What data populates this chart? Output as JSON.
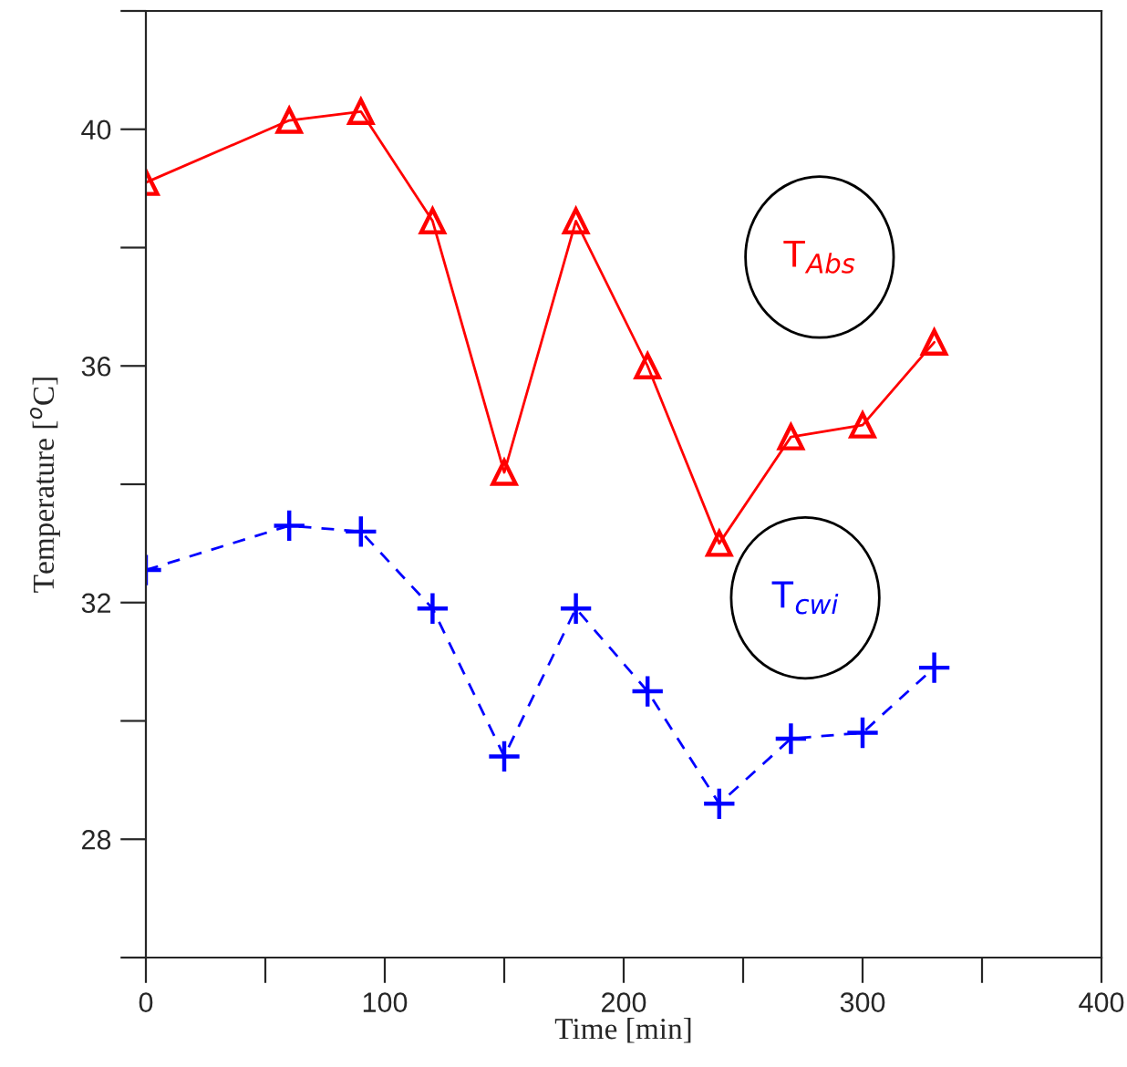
{
  "chart_data": {
    "type": "line",
    "xlabel": "Time [min]",
    "ylabel": "Temperature [$^{o}$C]",
    "x": [
      0,
      60,
      90,
      120,
      150,
      180,
      210,
      240,
      270,
      300,
      330
    ],
    "series": [
      {
        "name": "T$_{Abs}$",
        "color": "#ff0000",
        "marker": "triangle",
        "line_style": "solid",
        "values": [
          39.1,
          40.15,
          40.3,
          38.45,
          34.2,
          38.45,
          36.0,
          33.0,
          34.8,
          35.0,
          36.4
        ]
      },
      {
        "name": "T$_{cwi}$",
        "color": "#0000ff",
        "marker": "cross",
        "line_style": "dashed",
        "values": [
          32.55,
          33.3,
          33.2,
          31.9,
          29.4,
          31.9,
          30.5,
          28.6,
          29.7,
          29.8,
          30.9
        ]
      }
    ],
    "xlim": [
      0,
      400
    ],
    "xticks": [
      0,
      {
        "value": 50,
        "label": null
      },
      100,
      {
        "value": 150,
        "label": null
      },
      200,
      {
        "value": 250,
        "label": null
      },
      300,
      {
        "value": 350,
        "label": null
      },
      400
    ],
    "ylim": [
      26,
      42
    ],
    "yticks": [
      {
        "value": 26,
        "label": null
      },
      28,
      {
        "value": 30,
        "label": null
      },
      32,
      {
        "value": 34,
        "label": null
      },
      36,
      {
        "value": 38,
        "label": null
      },
      40,
      {
        "value": 42,
        "label": null
      }
    ],
    "grid": false,
    "legend": false
  }
}
